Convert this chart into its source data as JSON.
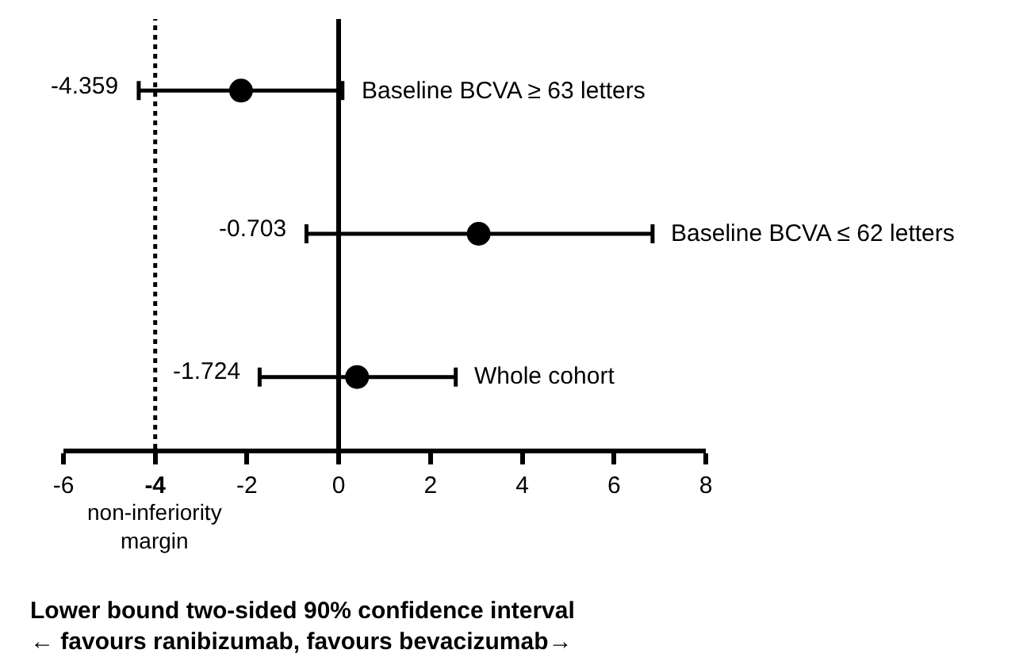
{
  "chart_data": {
    "type": "scatter",
    "orientation": "horizontal",
    "categories": [
      null,
      null,
      null
    ],
    "series": [
      {
        "name": "Baseline BCVA ≥ 63 letters",
        "color": "#000000",
        "values": [
          -2.13,
          null,
          null
        ],
        "errors": [
          [
            -4.359,
            0.08
          ],
          null,
          null
        ]
      },
      {
        "name": "Baseline BCVA ≤ 62 letters",
        "color": "#000000",
        "values": [
          null,
          3.05,
          null
        ],
        "errors": [
          null,
          [
            -0.703,
            6.84
          ],
          null
        ]
      },
      {
        "name": "Whole cohort",
        "color": "#000000",
        "values": [
          null,
          null,
          0.4
        ],
        "errors": [
          null,
          null,
          [
            -1.724,
            2.55
          ]
        ]
      }
    ],
    "marker": "circle",
    "grid": false,
    "legend": false,
    "tick_labels": "x",
    "xlim": [
      -6,
      8
    ],
    "xticks": [
      -6,
      -4,
      -2,
      0,
      2,
      4,
      6,
      8
    ],
    "xlabel": "Lower bound two-sided 90% confidence interval\n← favours ranibizumab, favours bevacizumab→",
    "ref_lines": [
      {
        "axis": "x",
        "value": -4,
        "line_style": "dotted"
      }
    ],
    "annotations": [
      "non-inferiority margin",
      {
        "text": "-4.359",
        "x": -4.359
      },
      {
        "text": "-0.703",
        "x": -0.703
      },
      {
        "text": "-1.724",
        "x": -1.724
      }
    ]
  }
}
